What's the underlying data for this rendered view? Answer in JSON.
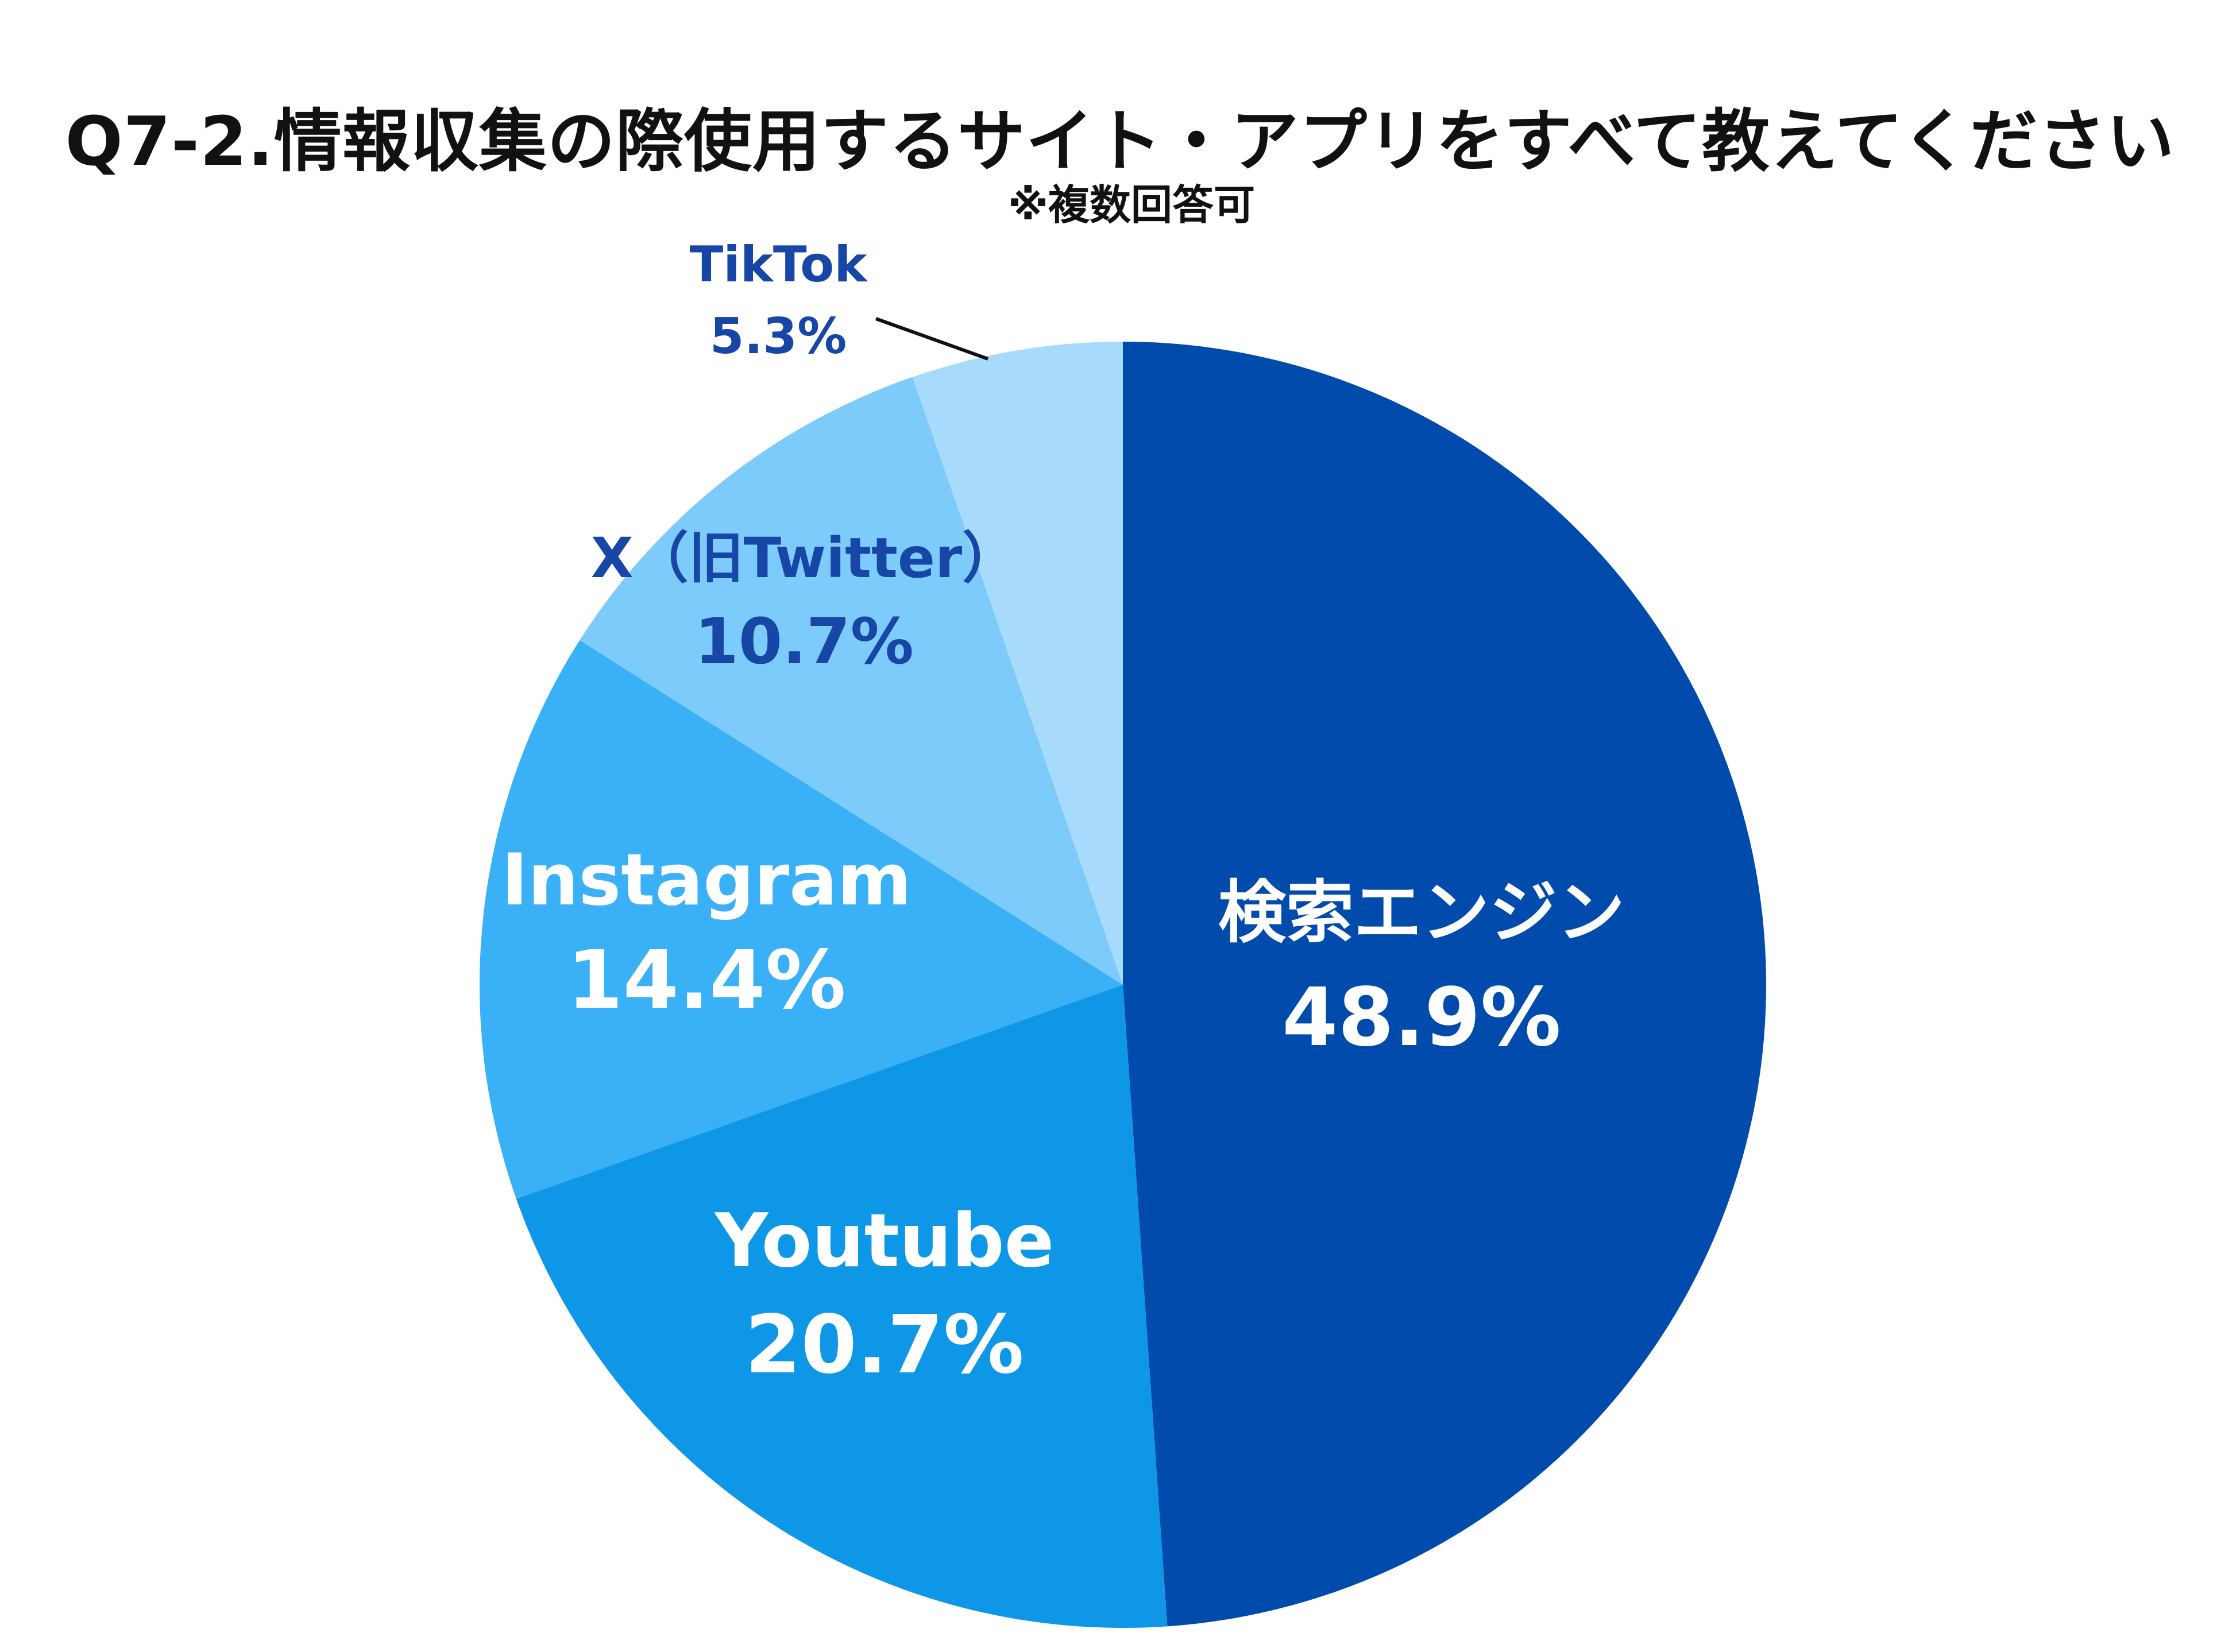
{
  "chart_data": {
    "type": "pie",
    "title": "Q7-2.情報収集の際使用するサイト・アプリをすべて教えてください",
    "subtitle": "※複数回答可",
    "unit": "%",
    "start_angle_deg": 0,
    "direction": "clockwise",
    "slices": [
      {
        "label": "検索エンジン",
        "value": 48.9,
        "value_label": "48.9%",
        "color": "#014BAC",
        "label_color": "#ffffff"
      },
      {
        "label": "Youtube",
        "value": 20.7,
        "value_label": "20.7%",
        "color": "#0D97E6",
        "label_color": "#ffffff"
      },
      {
        "label": "Instagram",
        "value": 14.4,
        "value_label": "14.4%",
        "color": "#3AB1F7",
        "label_color": "#ffffff"
      },
      {
        "label": "X（旧Twitter）",
        "value": 10.7,
        "value_label": "10.7%",
        "color": "#7CCBFA",
        "label_color": "#1746A6"
      },
      {
        "label": "TikTok",
        "value": 5.3,
        "value_label": "5.3%",
        "color": "#A8DBFB",
        "label_color": "#1746A6"
      }
    ]
  }
}
